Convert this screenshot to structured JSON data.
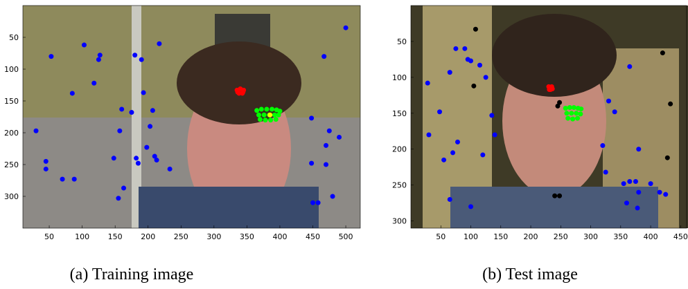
{
  "chart_data": [
    {
      "type": "scatter",
      "caption": "(a) Training image",
      "xlim": [
        10,
        522
      ],
      "ylim": [
        350,
        0
      ],
      "xticks": [
        50,
        100,
        150,
        200,
        250,
        300,
        350,
        400,
        450,
        500
      ],
      "yticks": [
        50,
        100,
        150,
        200,
        250,
        300
      ],
      "series": [
        {
          "color": "#0000ff",
          "x": [
            30,
            45,
            45,
            53,
            70,
            85,
            88,
            103,
            118,
            125,
            127,
            155,
            157,
            160,
            163,
            148,
            175,
            180,
            182,
            185,
            190,
            193,
            198,
            203,
            207,
            210,
            213,
            217,
            233,
            448,
            448,
            450,
            458,
            467,
            470,
            470,
            480,
            490,
            500,
            475
          ],
          "y": [
            197,
            245,
            257,
            80,
            273,
            138,
            273,
            62,
            122,
            85,
            78,
            303,
            197,
            163,
            287,
            240,
            168,
            78,
            240,
            248,
            85,
            137,
            223,
            190,
            165,
            237,
            243,
            60,
            257,
            177,
            248,
            310,
            310,
            80,
            220,
            250,
            300,
            207,
            35,
            197
          ]
        },
        {
          "color": "#ff0000",
          "x": [
            335,
            340,
            345,
            338,
            343,
            336,
            344
          ],
          "y": [
            133,
            131,
            133,
            138,
            138,
            136,
            136
          ]
        },
        {
          "color": "#00ff00",
          "x": [
            365,
            372,
            380,
            388,
            395,
            400,
            368,
            376,
            384,
            392,
            398,
            370,
            378,
            386,
            394
          ],
          "y": [
            165,
            163,
            163,
            163,
            164,
            166,
            172,
            172,
            172,
            172,
            172,
            179,
            180,
            180,
            179
          ]
        },
        {
          "color": "#ffff00",
          "x": [
            385
          ],
          "y": [
            172
          ]
        }
      ]
    },
    {
      "type": "scatter",
      "caption": "(b) Test image",
      "xlim": [
        0,
        460
      ],
      "ylim": [
        310,
        0
      ],
      "xticks": [
        50,
        100,
        150,
        200,
        250,
        300,
        350,
        400,
        450
      ],
      "yticks": [
        50,
        100,
        150,
        200,
        250,
        300
      ],
      "series": [
        {
          "color": "#0000ff",
          "x": [
            28,
            30,
            48,
            55,
            65,
            65,
            70,
            75,
            78,
            90,
            95,
            100,
            100,
            115,
            120,
            125,
            140,
            135,
            320,
            325,
            330,
            340,
            355,
            360,
            365,
            365,
            375,
            378,
            380,
            380,
            400,
            415,
            425
          ],
          "y": [
            108,
            180,
            148,
            215,
            93,
            270,
            205,
            60,
            190,
            60,
            75,
            77,
            280,
            83,
            208,
            100,
            180,
            153,
            195,
            232,
            133,
            148,
            248,
            275,
            85,
            245,
            245,
            282,
            260,
            200,
            248,
            260,
            263
          ]
        },
        {
          "color": "#000000",
          "x": [
            105,
            108,
            245,
            248,
            240,
            248,
            420,
            428,
            433
          ],
          "y": [
            112,
            33,
            140,
            135,
            265,
            265,
            66,
            212,
            137
          ]
        },
        {
          "color": "#ff0000",
          "x": [
            230,
            235,
            233,
            231,
            236
          ],
          "y": [
            113,
            113,
            117,
            117,
            116
          ]
        },
        {
          "color": "#00ff00",
          "x": [
            258,
            265,
            272,
            279,
            284,
            260,
            268,
            276,
            283,
            262,
            270,
            278
          ],
          "y": [
            143,
            142,
            142,
            143,
            144,
            150,
            150,
            150,
            151,
            157,
            158,
            157
          ]
        }
      ]
    }
  ]
}
